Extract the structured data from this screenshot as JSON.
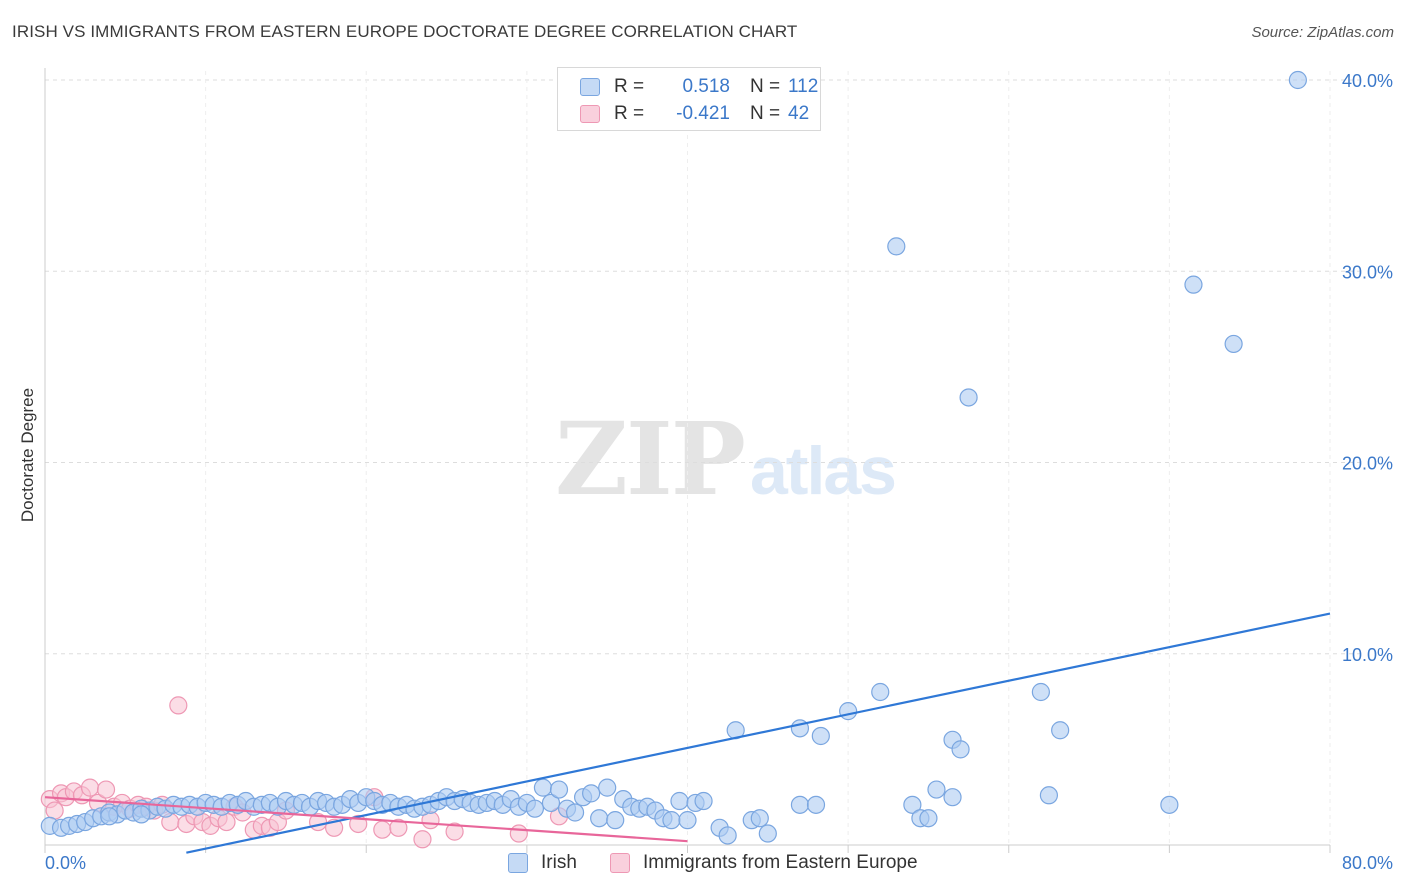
{
  "header": {
    "title": "IRISH VS IMMIGRANTS FROM EASTERN EUROPE DOCTORATE DEGREE CORRELATION CHART",
    "source": "Source: ZipAtlas.com"
  },
  "watermark": {
    "zip": "ZIP",
    "atlas": "atlas"
  },
  "legend": {
    "rows": [
      {
        "r_label": "R =",
        "r_value": "0.518",
        "n_label": "N =",
        "n_value": "112"
      },
      {
        "r_label": "R =",
        "r_value": "-0.421",
        "n_label": "N =",
        "n_value": "42"
      }
    ]
  },
  "bottom_legend": {
    "series1": "Irish",
    "series2": "Immigrants from Eastern Europe"
  },
  "colors": {
    "blue_fill": "#aecbf2",
    "blue_stroke": "#7aa6e0",
    "blue_line": "#2f78d6",
    "pink_fill": "#f7c1d2",
    "pink_stroke": "#ee98b4",
    "pink_line": "#e8669a",
    "tick_text": "#3b78c9",
    "grid": "#dddddd"
  },
  "chart_data": {
    "type": "scatter",
    "title": "IRISH VS IMMIGRANTS FROM EASTERN EUROPE DOCTORATE DEGREE CORRELATION CHART",
    "xlabel": "",
    "ylabel": "Doctorate Degree",
    "xlim": [
      0,
      80
    ],
    "ylim": [
      0,
      40
    ],
    "x_tick_labels": [
      "0.0%",
      "80.0%"
    ],
    "y_ticks": [
      10,
      20,
      30,
      40
    ],
    "y_tick_labels": [
      "10.0%",
      "20.0%",
      "30.0%",
      "40.0%"
    ],
    "grid": true,
    "legend_position": "top-center",
    "series": [
      {
        "name": "Irish",
        "r": 0.518,
        "n": 112,
        "trend": {
          "x": [
            8.8,
            80
          ],
          "y": [
            -0.4,
            12.1
          ]
        },
        "points": [
          [
            0.3,
            1.0
          ],
          [
            1,
            0.9
          ],
          [
            1.5,
            1.0
          ],
          [
            2,
            1.1
          ],
          [
            2.5,
            1.2
          ],
          [
            3,
            1.4
          ],
          [
            3.5,
            1.5
          ],
          [
            4,
            1.7
          ],
          [
            4.5,
            1.6
          ],
          [
            5,
            1.8
          ],
          [
            5.5,
            1.7
          ],
          [
            6,
            1.9
          ],
          [
            6.5,
            1.8
          ],
          [
            7,
            2.0
          ],
          [
            7.5,
            1.9
          ],
          [
            8,
            2.1
          ],
          [
            8.5,
            2.0
          ],
          [
            9,
            2.1
          ],
          [
            9.5,
            2.0
          ],
          [
            10,
            2.2
          ],
          [
            10.5,
            2.1
          ],
          [
            11,
            2.0
          ],
          [
            11.5,
            2.2
          ],
          [
            12,
            2.1
          ],
          [
            12.5,
            2.3
          ],
          [
            13,
            2.0
          ],
          [
            13.5,
            2.1
          ],
          [
            14,
            2.2
          ],
          [
            14.5,
            2.0
          ],
          [
            15,
            2.3
          ],
          [
            15.5,
            2.1
          ],
          [
            16,
            2.2
          ],
          [
            16.5,
            2.0
          ],
          [
            17,
            2.3
          ],
          [
            17.5,
            2.2
          ],
          [
            18,
            2.0
          ],
          [
            18.5,
            2.1
          ],
          [
            19,
            2.4
          ],
          [
            19.5,
            2.2
          ],
          [
            20,
            2.5
          ],
          [
            20.5,
            2.3
          ],
          [
            21,
            2.1
          ],
          [
            21.5,
            2.2
          ],
          [
            22,
            2.0
          ],
          [
            22.5,
            2.1
          ],
          [
            23,
            1.9
          ],
          [
            23.5,
            2.0
          ],
          [
            24,
            2.1
          ],
          [
            24.5,
            2.3
          ],
          [
            25,
            2.5
          ],
          [
            25.5,
            2.3
          ],
          [
            26,
            2.4
          ],
          [
            26.5,
            2.2
          ],
          [
            27,
            2.1
          ],
          [
            27.5,
            2.2
          ],
          [
            28,
            2.3
          ],
          [
            28.5,
            2.1
          ],
          [
            29,
            2.4
          ],
          [
            29.5,
            2.0
          ],
          [
            30,
            2.2
          ],
          [
            30.5,
            1.9
          ],
          [
            31,
            3.0
          ],
          [
            31.5,
            2.2
          ],
          [
            32,
            2.9
          ],
          [
            32.5,
            1.9
          ],
          [
            33,
            1.7
          ],
          [
            33.5,
            2.5
          ],
          [
            34,
            2.7
          ],
          [
            34.5,
            1.4
          ],
          [
            35,
            3.0
          ],
          [
            35.5,
            1.3
          ],
          [
            36,
            2.4
          ],
          [
            36.5,
            2.0
          ],
          [
            37,
            1.9
          ],
          [
            37.5,
            2.0
          ],
          [
            38,
            1.8
          ],
          [
            38.5,
            1.4
          ],
          [
            39,
            1.3
          ],
          [
            39.5,
            2.3
          ],
          [
            40,
            1.3
          ],
          [
            40.5,
            2.2
          ],
          [
            41,
            2.3
          ],
          [
            42,
            0.9
          ],
          [
            42.5,
            0.5
          ],
          [
            43,
            6.0
          ],
          [
            44,
            1.3
          ],
          [
            44.5,
            1.4
          ],
          [
            45,
            0.6
          ],
          [
            47,
            6.1
          ],
          [
            47,
            2.1
          ],
          [
            48,
            2.1
          ],
          [
            48.3,
            5.7
          ],
          [
            50,
            7.0
          ],
          [
            52,
            8.0
          ],
          [
            53,
            31.3
          ],
          [
            54,
            2.1
          ],
          [
            54.5,
            1.4
          ],
          [
            55,
            1.4
          ],
          [
            55.5,
            2.9
          ],
          [
            56.5,
            5.5
          ],
          [
            57,
            5.0
          ],
          [
            56.5,
            2.5
          ],
          [
            57.5,
            23.4
          ],
          [
            62,
            8.0
          ],
          [
            62.5,
            2.6
          ],
          [
            63.2,
            6.0
          ],
          [
            70,
            2.1
          ],
          [
            71.5,
            29.3
          ],
          [
            74,
            26.2
          ],
          [
            78,
            40.0
          ],
          [
            4,
            1.5
          ],
          [
            6,
            1.6
          ]
        ]
      },
      {
        "name": "Immigrants from Eastern Europe",
        "r": -0.421,
        "n": 42,
        "trend": {
          "x": [
            0,
            40
          ],
          "y": [
            2.5,
            0.2
          ]
        },
        "points": [
          [
            0.3,
            2.4
          ],
          [
            0.6,
            1.8
          ],
          [
            1,
            2.7
          ],
          [
            1.3,
            2.5
          ],
          [
            1.8,
            2.8
          ],
          [
            2.3,
            2.6
          ],
          [
            2.8,
            3.0
          ],
          [
            3.3,
            2.2
          ],
          [
            3.8,
            2.9
          ],
          [
            4.3,
            2.0
          ],
          [
            4.8,
            2.2
          ],
          [
            5.3,
            1.9
          ],
          [
            5.8,
            2.1
          ],
          [
            6.3,
            2.0
          ],
          [
            6.8,
            1.8
          ],
          [
            7.3,
            2.1
          ],
          [
            7.8,
            1.2
          ],
          [
            8.3,
            7.3
          ],
          [
            8.8,
            1.1
          ],
          [
            9.3,
            1.5
          ],
          [
            9.8,
            1.2
          ],
          [
            10.3,
            1.0
          ],
          [
            10.8,
            1.4
          ],
          [
            11.3,
            1.2
          ],
          [
            11.8,
            2.0
          ],
          [
            12.3,
            1.7
          ],
          [
            13,
            0.8
          ],
          [
            13.5,
            1.0
          ],
          [
            14,
            0.9
          ],
          [
            14.5,
            1.2
          ],
          [
            15,
            1.8
          ],
          [
            17,
            1.2
          ],
          [
            18,
            0.9
          ],
          [
            19.5,
            1.1
          ],
          [
            20.5,
            2.5
          ],
          [
            21,
            0.8
          ],
          [
            22,
            0.9
          ],
          [
            23.5,
            0.3
          ],
          [
            24,
            1.3
          ],
          [
            25.5,
            0.7
          ],
          [
            29.5,
            0.6
          ],
          [
            32,
            1.5
          ]
        ]
      }
    ]
  }
}
